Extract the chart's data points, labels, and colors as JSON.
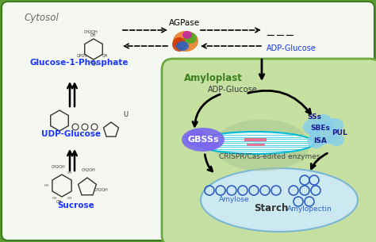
{
  "bg_outer": "#5a9e32",
  "bg_inner": "#f0f7e6",
  "cytosol_label": "Cytosol",
  "amyloplast_label": "Amyloplast",
  "starch_label": "Starch",
  "amylose_label": "Amylose",
  "amylopectin_label": "Amylopectin",
  "gbss_label": "GBSSs",
  "adpglucose_inside_label": "ADP-Glucose",
  "adpglucose_outside_label": "ADP-Glucose",
  "crispr_label": "CRISPR/Cas-edited enzymes",
  "glucose1p_label": "Glucose-1-Phosphate",
  "udpglucose_label": "UDP-Glucose",
  "sucrose_label": "Sucrose",
  "agpase_label": "AGPase",
  "ss_label": "SSs",
  "sbes_label": "SBEs",
  "pul_label": "PUL",
  "isa_label": "ISA",
  "outer_border_color": "#3d7a20",
  "amyloplast_bg": "#c5e0a0",
  "starch_bg": "#cce8f0",
  "gbss_color": "#7B68EE",
  "enzyme_color": "#87CEEB",
  "blue_text": "#1a35ff",
  "teal_color": "#00bcd4",
  "pink_color": "#e87090",
  "shadow_color": "#a8c898"
}
